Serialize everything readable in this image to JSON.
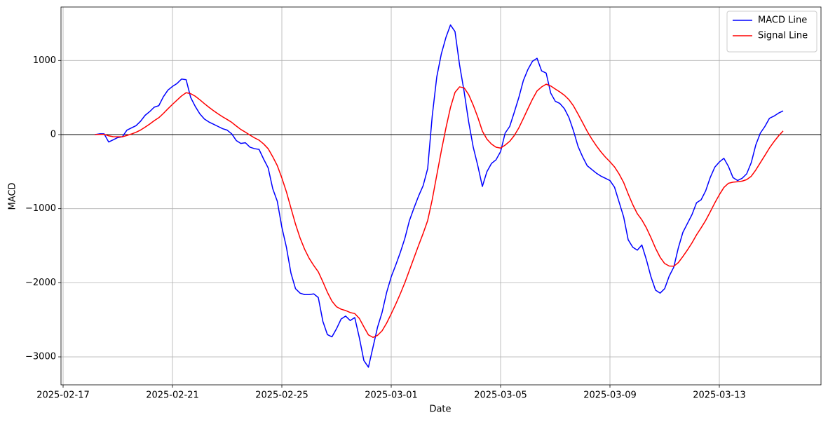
{
  "chart_data": {
    "type": "line",
    "xlabel": "Date",
    "ylabel": "MACD",
    "x": [
      20137.1667,
      20137.3333,
      20137.5,
      20137.6667,
      20137.8333,
      20138,
      20138.1667,
      20138.3333,
      20138.5,
      20138.6667,
      20138.8333,
      20139,
      20139.1667,
      20139.3333,
      20139.5,
      20139.6667,
      20139.8333,
      20140,
      20140.1667,
      20140.3333,
      20140.5,
      20140.6667,
      20140.8333,
      20141,
      20141.1667,
      20141.3333,
      20141.5,
      20141.6667,
      20141.8333,
      20142,
      20142.1667,
      20142.3333,
      20142.5,
      20142.6667,
      20142.8333,
      20143,
      20143.1667,
      20143.3333,
      20143.5,
      20143.6667,
      20143.8333,
      20144,
      20144.1667,
      20144.3333,
      20144.5,
      20144.6667,
      20144.8333,
      20145,
      20145.1667,
      20145.3333,
      20145.5,
      20145.6667,
      20145.8333,
      20146,
      20146.1667,
      20146.3333,
      20146.5,
      20146.6667,
      20146.8333,
      20147,
      20147.1667,
      20147.3333,
      20147.5,
      20147.6667,
      20147.8333,
      20148,
      20148.1667,
      20148.3333,
      20148.5,
      20148.6667,
      20148.8333,
      20149,
      20149.1667,
      20149.3333,
      20149.5,
      20149.6667,
      20149.8333,
      20150,
      20150.1667,
      20150.3333,
      20150.5,
      20150.6667,
      20150.8333,
      20151,
      20151.1667,
      20151.3333,
      20151.5,
      20151.6667,
      20151.8333,
      20152,
      20152.1667,
      20152.3333,
      20152.5,
      20152.6667,
      20152.8333,
      20153,
      20153.1667,
      20153.3333,
      20153.5,
      20153.6667,
      20153.8333,
      20154,
      20154.1667,
      20154.3333,
      20154.5,
      20154.6667,
      20154.8333,
      20155,
      20155.1667,
      20155.3333,
      20155.5,
      20155.6667,
      20155.8333,
      20156,
      20156.1667,
      20156.3333,
      20156.5,
      20156.6667,
      20156.8333,
      20157,
      20157.1667,
      20157.3333,
      20157.5,
      20157.6667,
      20157.8333,
      20158,
      20158.1667,
      20158.3333,
      20158.5,
      20158.6667,
      20158.8333,
      20159,
      20159.1667,
      20159.3333,
      20159.5,
      20159.6667,
      20159.8333,
      20160,
      20160.1667,
      20160.3333,
      20160.5,
      20160.6667,
      20160.8333,
      20161,
      20161.1667,
      20161.3333,
      20161.5,
      20161.6667,
      20161.8333,
      20162,
      20162.1667,
      20162.3333
    ],
    "series": [
      {
        "name": "MACD Line",
        "color": "#0000ff",
        "values": [
          0,
          10,
          10,
          -100,
          -70,
          -40,
          -30,
          60,
          90,
          120,
          180,
          260,
          310,
          370,
          390,
          510,
          600,
          650,
          690,
          750,
          740,
          500,
          380,
          280,
          210,
          170,
          140,
          110,
          80,
          60,
          10,
          -80,
          -120,
          -110,
          -170,
          -190,
          -200,
          -330,
          -450,
          -730,
          -900,
          -1250,
          -1520,
          -1870,
          -2080,
          -2140,
          -2160,
          -2160,
          -2150,
          -2200,
          -2520,
          -2700,
          -2730,
          -2620,
          -2490,
          -2450,
          -2510,
          -2470,
          -2740,
          -3050,
          -3140,
          -2870,
          -2600,
          -2400,
          -2130,
          -1920,
          -1760,
          -1590,
          -1400,
          -1160,
          -990,
          -830,
          -690,
          -460,
          250,
          780,
          1090,
          1310,
          1480,
          1390,
          940,
          580,
          170,
          -170,
          -420,
          -700,
          -500,
          -390,
          -340,
          -230,
          20,
          110,
          300,
          500,
          730,
          880,
          990,
          1030,
          860,
          830,
          560,
          450,
          420,
          350,
          230,
          50,
          -160,
          -300,
          -420,
          -470,
          -520,
          -560,
          -590,
          -620,
          -710,
          -910,
          -1110,
          -1420,
          -1520,
          -1560,
          -1490,
          -1690,
          -1920,
          -2100,
          -2140,
          -2080,
          -1910,
          -1790,
          -1530,
          -1320,
          -1200,
          -1080,
          -920,
          -880,
          -760,
          -580,
          -440,
          -370,
          -320,
          -430,
          -580,
          -620,
          -590,
          -530,
          -380,
          -140,
          20,
          110,
          220,
          250,
          290,
          320
        ]
      },
      {
        "name": "Signal Line",
        "color": "#ff0000",
        "values": [
          0,
          2,
          4,
          -17,
          -28,
          -30,
          -30,
          -12,
          8,
          31,
          61,
          100,
          142,
          188,
          228,
          285,
          348,
          408,
          465,
          522,
          565,
          552,
          518,
          470,
          418,
          369,
          323,
          280,
          240,
          204,
          165,
          116,
          69,
          33,
          -7,
          -44,
          -75,
          -126,
          -191,
          -299,
          -419,
          -585,
          -772,
          -992,
          -1209,
          -1396,
          -1548,
          -1671,
          -1767,
          -1853,
          -1987,
          -2129,
          -2249,
          -2324,
          -2357,
          -2375,
          -2402,
          -2416,
          -2481,
          -2595,
          -2704,
          -2737,
          -2710,
          -2648,
          -2544,
          -2419,
          -2288,
          -2148,
          -1998,
          -1831,
          -1663,
          -1496,
          -1335,
          -1160,
          -878,
          -546,
          -219,
          87,
          365,
          570,
          644,
          631,
          539,
          397,
          234,
          47,
          -62,
          -128,
          -170,
          -182,
          -142,
          -91,
          -13,
          90,
          218,
          350,
          478,
          589,
          643,
          680,
          656,
          615,
          576,
          531,
          471,
          387,
          277,
          162,
          45,
          -58,
          -150,
          -232,
          -304,
          -367,
          -436,
          -531,
          -646,
          -801,
          -945,
          -1068,
          -1152,
          -1260,
          -1392,
          -1534,
          -1655,
          -1740,
          -1774,
          -1777,
          -1728,
          -1646,
          -1557,
          -1462,
          -1353,
          -1259,
          -1159,
          -1043,
          -923,
          -812,
          -714,
          -657,
          -642,
          -637,
          -628,
          -608,
          -563,
          -478,
          -379,
          -281,
          -181,
          -95,
          -18,
          50
        ]
      }
    ],
    "xlim": [
      20135.923,
      20163.718
    ],
    "ylim": [
      -3378,
      1722
    ],
    "xticks": [
      {
        "value": 20136,
        "label": "2025-02-17"
      },
      {
        "value": 20140,
        "label": "2025-02-21"
      },
      {
        "value": 20144,
        "label": "2025-02-25"
      },
      {
        "value": 20148,
        "label": "2025-03-01"
      },
      {
        "value": 20152,
        "label": "2025-03-05"
      },
      {
        "value": 20156,
        "label": "2025-03-09"
      },
      {
        "value": 20160,
        "label": "2025-03-13"
      }
    ],
    "yticks": [
      {
        "value": -3000,
        "label": "−3000"
      },
      {
        "value": -2000,
        "label": "−2000"
      },
      {
        "value": -1000,
        "label": "−1000"
      },
      0,
      1000
    ],
    "axhline": 0,
    "grid": true,
    "legend": "upper right"
  }
}
